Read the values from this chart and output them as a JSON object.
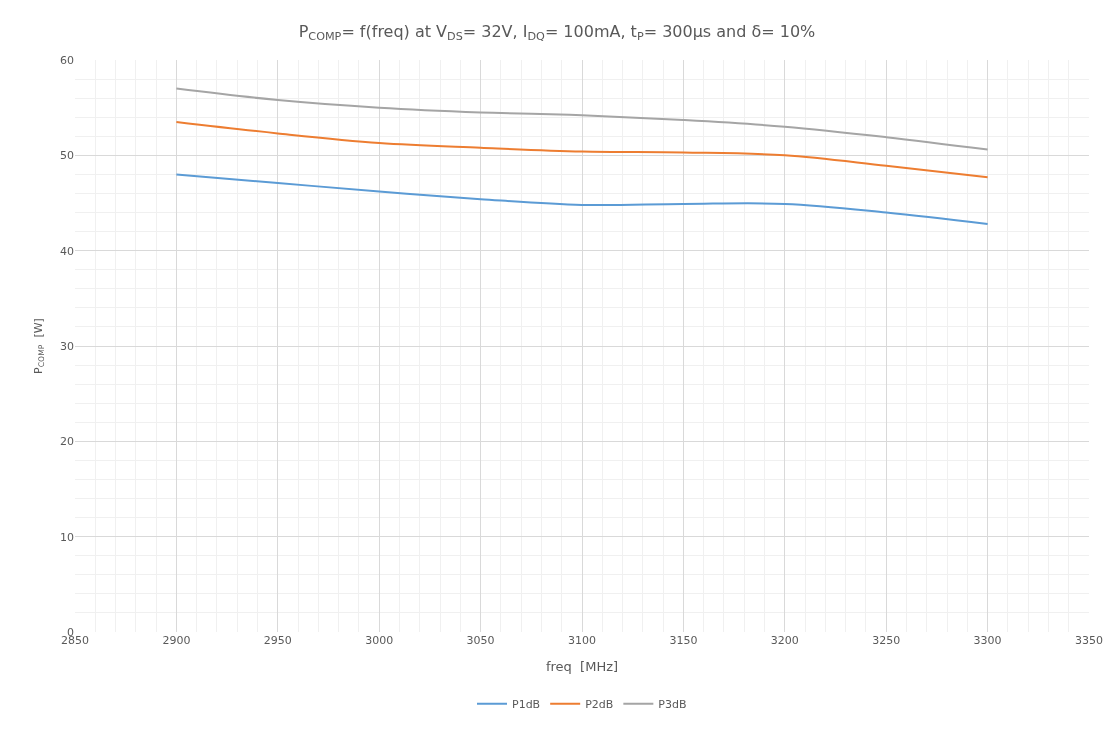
{
  "chart_data": {
    "type": "line",
    "title": "P$_{COMP}$= f(freq) at V$_{DS}$= 32V, I$_{DQ}$= 100mA, t$_{P}$= 300µs and δ= 10%",
    "xlabel": "freq  [MHz]",
    "ylabel": "P$_{COMP}$  [W]",
    "x": [
      2900,
      2950,
      3000,
      3050,
      3100,
      3150,
      3200,
      3250,
      3300
    ],
    "series": [
      {
        "name": "P1dB",
        "color": "#5b9bd5",
        "values": [
          48.0,
          47.1,
          46.2,
          45.4,
          44.8,
          44.9,
          44.9,
          44.0,
          42.8
        ]
      },
      {
        "name": "P2dB",
        "color": "#ed7d31",
        "values": [
          53.5,
          52.3,
          51.3,
          50.8,
          50.4,
          50.3,
          50.0,
          48.9,
          47.7
        ]
      },
      {
        "name": "P3dB",
        "color": "#a5a5a5",
        "values": [
          57.0,
          55.8,
          55.0,
          54.5,
          54.2,
          53.7,
          53.0,
          51.9,
          50.6
        ]
      }
    ],
    "xlim": [
      2850,
      3350
    ],
    "xticks": [
      2850,
      2900,
      2950,
      3000,
      3050,
      3100,
      3150,
      3200,
      3250,
      3300,
      3350
    ],
    "ylim": [
      0,
      60
    ],
    "yticks": [
      0,
      10,
      20,
      30,
      40,
      50,
      60
    ],
    "grid": true,
    "legend": "bottom",
    "marker": "none",
    "line_style": "solid"
  }
}
